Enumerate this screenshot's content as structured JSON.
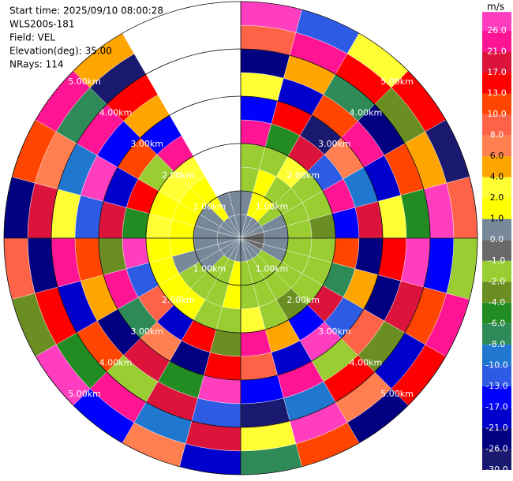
{
  "chart_data": {
    "type": "ppi",
    "info": [
      "Start time: 2025/09/10 08:00:28",
      "WLS200s-181",
      "Field: VEL",
      "Elevation(deg): 35.00",
      "NRays: 114"
    ],
    "unit": "m/s",
    "rings": [
      {
        "value": 1,
        "label": "1.00km"
      },
      {
        "value": 2,
        "label": "2.00km"
      },
      {
        "value": 3,
        "label": "3.00km"
      },
      {
        "value": 4,
        "label": "4.00km"
      },
      {
        "value": 5,
        "label": "5.00km"
      }
    ],
    "field": [
      [
        0.5,
        0.5,
        -1.5,
        -1.5,
        22,
        -15,
        3,
        -23,
        9,
        28
      ],
      [
        0.5,
        1.5,
        1.5,
        -1.5,
        -5,
        15,
        -19,
        5,
        24,
        -11
      ],
      [
        0.5,
        1.5,
        -1.5,
        3,
        19,
        -28,
        11,
        -7,
        16,
        2.5
      ],
      [
        0.5,
        -1.5,
        -1.5,
        -1.5,
        -12,
        7,
        23,
        -24,
        -3,
        14
      ],
      [
        0.5,
        0.5,
        -1.5,
        -1.5,
        25,
        -9,
        -18,
        12,
        5,
        -27
      ],
      [
        -0.5,
        0.5,
        -1.5,
        -3,
        -14,
        20,
        3,
        -6,
        27,
        9
      ],
      [
        -0.5,
        0.5,
        -1.5,
        -1.5,
        11,
        -22,
        16,
        28,
        -15,
        -2
      ],
      [
        -0.5,
        0.5,
        -1.5,
        -1.5,
        -7,
        4,
        -25,
        18,
        11,
        23
      ],
      [
        0.5,
        -1.5,
        -1.5,
        -1.5,
        19,
        -11,
        8,
        -4,
        -20,
        15
      ],
      [
        0.5,
        -1.5,
        -1.5,
        -3,
        -16,
        26,
        -2,
        14,
        6,
        -24
      ],
      [
        0.5,
        -1.5,
        -1.5,
        -1.5,
        5,
        -19,
        21,
        -9,
        29,
        12
      ],
      [
        0.5,
        -1.5,
        -1.5,
        3,
        24,
        9,
        -14,
        -27,
        3,
        -7
      ],
      [
        0.5,
        1.5,
        1.5,
        -1.5,
        -3,
        15,
        27,
        -12,
        19,
        -18
      ],
      [
        0.5,
        -1.5,
        -1.5,
        -1.5,
        13,
        -25,
        -6,
        20,
        -10,
        7
      ],
      [
        0.5,
        -1.5,
        -1.5,
        1.5,
        -20,
        6,
        18,
        -2,
        25,
        -15
      ],
      [
        0.5,
        0.5,
        -1.5,
        1.5,
        9,
        -8,
        -23,
        11,
        -5,
        28
      ],
      [
        0.5,
        0.5,
        0.5,
        1.5,
        -11,
        22,
        5,
        -18,
        14,
        -3
      ],
      [
        0.5,
        0.5,
        1.5,
        1.5,
        27,
        -4,
        12,
        25,
        -22,
        9
      ],
      [
        0.5,
        0.5,
        1.5,
        3,
        -6,
        17,
        -13,
        3,
        19,
        -26
      ],
      [
        0.5,
        0.5,
        1.5,
        1.5,
        15,
        -21,
        26,
        -9,
        7,
        11
      ],
      [
        0.5,
        0.5,
        1.5,
        3,
        -2,
        10,
        -17,
        22,
        -8,
        24
      ],
      [
        0.5,
        1.5,
        1.5,
        3,
        21,
        -14,
        4,
        16,
        -29,
        5
      ],
      [
        0.5,
        0.5,
        null,
        null,
        null,
        null,
        null,
        null,
        null,
        null
      ],
      [
        0.5,
        0.5,
        null,
        null,
        null,
        null,
        null,
        null,
        null,
        null
      ]
    ],
    "colorbar": {
      "ticks": [
        {
          "value": -30,
          "label": "-30.0"
        },
        {
          "value": -26,
          "label": "-26.0"
        },
        {
          "value": -21,
          "label": "-21.0"
        },
        {
          "value": -17,
          "label": "-17.0"
        },
        {
          "value": -13,
          "label": "-13.0"
        },
        {
          "value": -10,
          "label": "-10.0"
        },
        {
          "value": -8,
          "label": "-8.0"
        },
        {
          "value": -6,
          "label": "-6.0"
        },
        {
          "value": -4,
          "label": "-4.0"
        },
        {
          "value": -2,
          "label": "-2.0"
        },
        {
          "value": -1,
          "label": "-1.0"
        },
        {
          "value": 0,
          "label": "0.0"
        },
        {
          "value": 1,
          "label": "1.0"
        },
        {
          "value": 2,
          "label": "2.0"
        },
        {
          "value": 4,
          "label": "4.0"
        },
        {
          "value": 6,
          "label": "6.0"
        },
        {
          "value": 8,
          "label": "8.0"
        },
        {
          "value": 10,
          "label": "10.0"
        },
        {
          "value": 13,
          "label": "13.0"
        },
        {
          "value": 17,
          "label": "17.0"
        },
        {
          "value": 21,
          "label": "21.0"
        },
        {
          "value": 26,
          "label": "26.0"
        }
      ],
      "colors": [
        "#191970",
        "#000080",
        "#0000cd",
        "#0000ff",
        "#2d5be3",
        "#1f77d0",
        "#2e8b57",
        "#228b22",
        "#6b8e23",
        "#9acd32",
        "#696969",
        "#778899",
        "#ffff00",
        "#ffff33",
        "#ffa500",
        "#ff7f50",
        "#ff6347",
        "#ff4500",
        "#ff0000",
        "#dc143c",
        "#ff1493",
        "#ff3ebf"
      ]
    }
  }
}
